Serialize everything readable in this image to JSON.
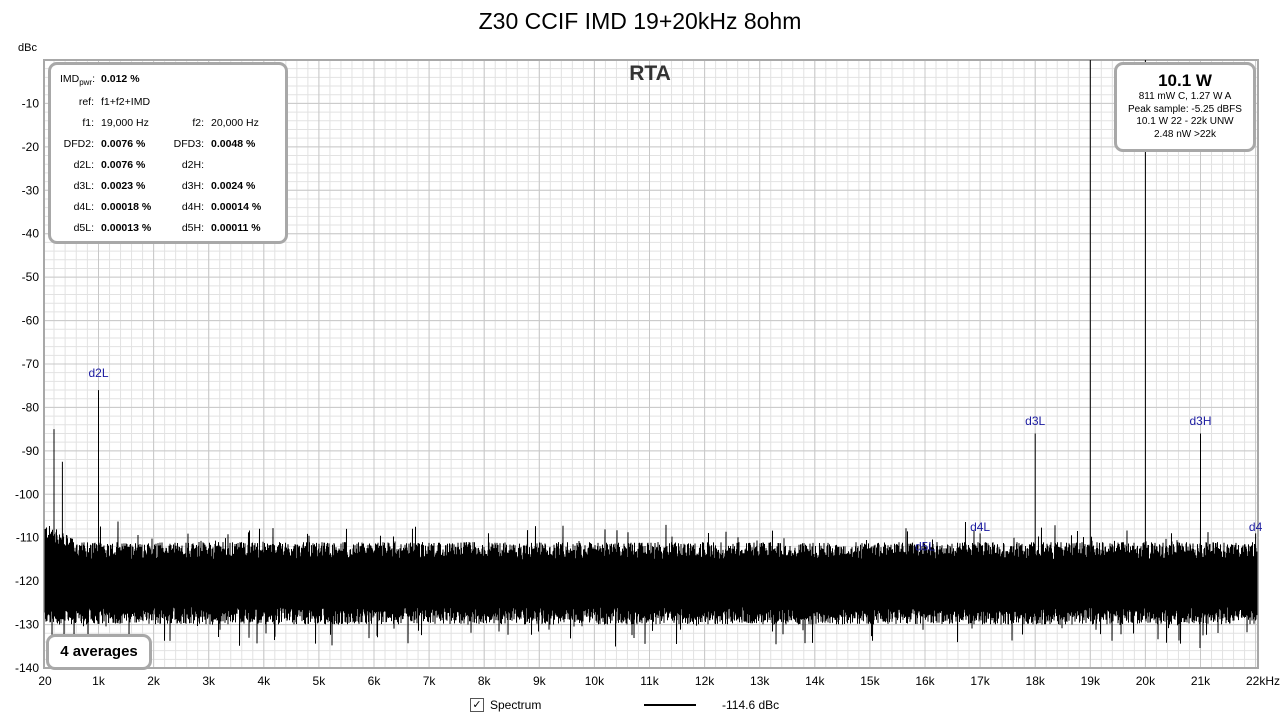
{
  "chart_data": {
    "type": "line",
    "title": "Z30 CCIF IMD 19+20kHz 8ohm",
    "ylabel": "dBc",
    "xlabel": "",
    "xlim": [
      20,
      22000
    ],
    "ylim": [
      -140,
      0
    ],
    "x_unit": "Hz",
    "yticks": [
      "-10",
      "-20",
      "-30",
      "-40",
      "-50",
      "-60",
      "-70",
      "-80",
      "-90",
      "-100",
      "-110",
      "-120",
      "-130",
      "-140"
    ],
    "xticks": [
      {
        "label": "20",
        "value": 20
      },
      {
        "label": "1k",
        "value": 1000
      },
      {
        "label": "2k",
        "value": 2000
      },
      {
        "label": "3k",
        "value": 3000
      },
      {
        "label": "4k",
        "value": 4000
      },
      {
        "label": "5k",
        "value": 5000
      },
      {
        "label": "6k",
        "value": 6000
      },
      {
        "label": "7k",
        "value": 7000
      },
      {
        "label": "8k",
        "value": 8000
      },
      {
        "label": "9k",
        "value": 9000
      },
      {
        "label": "10k",
        "value": 10000
      },
      {
        "label": "11k",
        "value": 11000
      },
      {
        "label": "12k",
        "value": 12000
      },
      {
        "label": "13k",
        "value": 13000
      },
      {
        "label": "14k",
        "value": 14000
      },
      {
        "label": "15k",
        "value": 15000
      },
      {
        "label": "16k",
        "value": 16000
      },
      {
        "label": "17k",
        "value": 17000
      },
      {
        "label": "18k",
        "value": 18000
      },
      {
        "label": "19k",
        "value": 19000
      },
      {
        "label": "20k",
        "value": 20000
      },
      {
        "label": "21k",
        "value": 21000
      },
      {
        "label": "22kHz",
        "value": 22000
      }
    ],
    "grid": true,
    "series": [
      {
        "name": "Spectrum",
        "color": "#000000",
        "noise_floor_db": -120,
        "peaks": [
          {
            "x": 200,
            "y": -85
          },
          {
            "x": 350,
            "y": -92.5
          },
          {
            "x": 1000,
            "y": -76
          },
          {
            "x": 16000,
            "y": -116
          },
          {
            "x": 17000,
            "y": -109
          },
          {
            "x": 18000,
            "y": -86
          },
          {
            "x": 19000,
            "y": 0
          },
          {
            "x": 20000,
            "y": 0
          },
          {
            "x": 21000,
            "y": -86
          },
          {
            "x": 22000,
            "y": -109
          }
        ]
      }
    ],
    "annotations": [
      {
        "text": "d2L",
        "x": 1000,
        "y": -73
      },
      {
        "text": "d5L",
        "x": 16000,
        "y": -113
      },
      {
        "text": "d4L",
        "x": 17000,
        "y": -108.5
      },
      {
        "text": "d3L",
        "x": 18000,
        "y": -84
      },
      {
        "text": "d3H",
        "x": 21000,
        "y": -84
      },
      {
        "text": "d4",
        "x": 22000,
        "y": -108.5
      }
    ],
    "annotation_color": "#1a1aa0"
  },
  "rta_label": "RTA",
  "stats": {
    "imd_label_main": "IMD",
    "imd_label_sub": "pwr",
    "imd_label_colon": ":",
    "imd_value": "0.012 %",
    "ref_label": "ref:",
    "ref_value": "f1+f2+IMD",
    "f1_label": "f1:",
    "f1_value": "19,000 Hz",
    "f2_label": "f2:",
    "f2_value": "20,000 Hz",
    "dfd2_label": "DFD2:",
    "dfd2_value": "0.0076 %",
    "dfd3_label": "DFD3:",
    "dfd3_value": "0.0048 %",
    "d2l_label": "d2L:",
    "d2l_value": "0.0076 %",
    "d2h_label": "d2H:",
    "d3l_label": "d3L:",
    "d3l_value": "0.0023 %",
    "d3h_label": "d3H:",
    "d3h_value": "0.0024 %",
    "d4l_label": "d4L:",
    "d4l_value": "0.00018 %",
    "d4h_label": "d4H:",
    "d4h_value": "0.00014 %",
    "d5l_label": "d5L:",
    "d5l_value": "0.00013 %",
    "d5h_label": "d5H:",
    "d5h_value": "0.00011 %"
  },
  "power": {
    "main": "10.1 W",
    "line1": "811 mW C, 1.27 W A",
    "line2": "Peak sample: -5.25 dBFS",
    "line3": "10.1 W 22 - 22k UNW",
    "line4": "2.48 nW >22k"
  },
  "averages": "4 averages",
  "legend": {
    "checkbox": "✓",
    "name": "Spectrum",
    "value": "-114.6 dBc"
  }
}
